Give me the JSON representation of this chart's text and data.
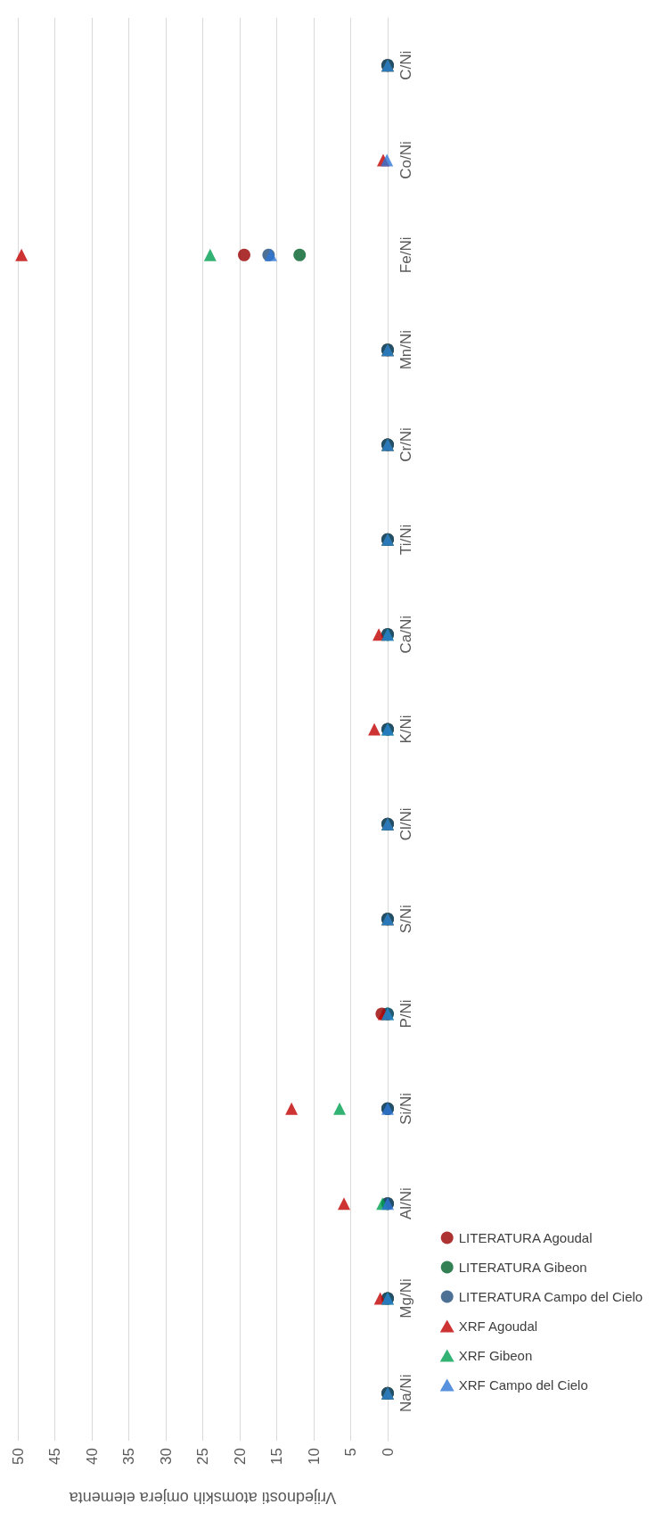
{
  "chart_data": {
    "type": "scatter",
    "orientation": "horizontal",
    "xlabel": "Vrijednosti atomskih omjera elementa",
    "categories": [
      "C/Ni",
      "Co/Ni",
      "Fe/Ni",
      "Mn/Ni",
      "Cr/Ni",
      "Ti/Ni",
      "Ca/Ni",
      "K/Ni",
      "Cl/Ni",
      "S/Ni",
      "P/Ni",
      "Si/Ni",
      "Al/Ni",
      "Mg/Ni",
      "Na/Ni"
    ],
    "series": [
      {
        "name": "LITERATURA Agoudal",
        "color": "#990000",
        "marker": "circle",
        "values": [
          0,
          null,
          19.4,
          0,
          0,
          0,
          0,
          0,
          0,
          0,
          0.8,
          0,
          0,
          0,
          0
        ]
      },
      {
        "name": "LITERATURA Gibeon",
        "color": "#00602b",
        "marker": "circle",
        "values": [
          0,
          null,
          11.9,
          0,
          0,
          0,
          0,
          0,
          0,
          0,
          0,
          0,
          0,
          0,
          0
        ]
      },
      {
        "name": "LITERATURA Campo del Cielo",
        "color": "#1f4e79",
        "marker": "circle",
        "values": [
          0,
          null,
          16.1,
          0,
          0,
          0,
          0,
          0,
          0,
          0,
          0,
          0,
          0,
          0,
          0
        ]
      },
      {
        "name": "XRF Agoudal",
        "color": "#c00000",
        "marker": "triangle",
        "values": [
          0,
          0.6,
          49.5,
          0,
          0,
          0,
          1.2,
          1.8,
          0,
          0,
          0.5,
          13,
          5.9,
          1,
          0
        ]
      },
      {
        "name": "XRF Gibeon",
        "color": "#00a050",
        "marker": "triangle",
        "values": [
          0,
          null,
          24,
          0,
          0,
          0,
          0,
          0,
          0,
          0,
          0,
          6.5,
          0.7,
          0,
          0
        ]
      },
      {
        "name": "XRF Campo del Cielo",
        "color": "#2e75d6",
        "marker": "triangle",
        "values": [
          0,
          0.1,
          15.8,
          0,
          0,
          0,
          0,
          0,
          0,
          0,
          0,
          0,
          0,
          0,
          0
        ]
      }
    ],
    "xlim": [
      50,
      0
    ],
    "xticks": [
      50,
      45,
      40,
      35,
      30,
      25,
      20,
      15,
      10,
      5,
      0
    ],
    "grid": "x",
    "legend": "right"
  }
}
